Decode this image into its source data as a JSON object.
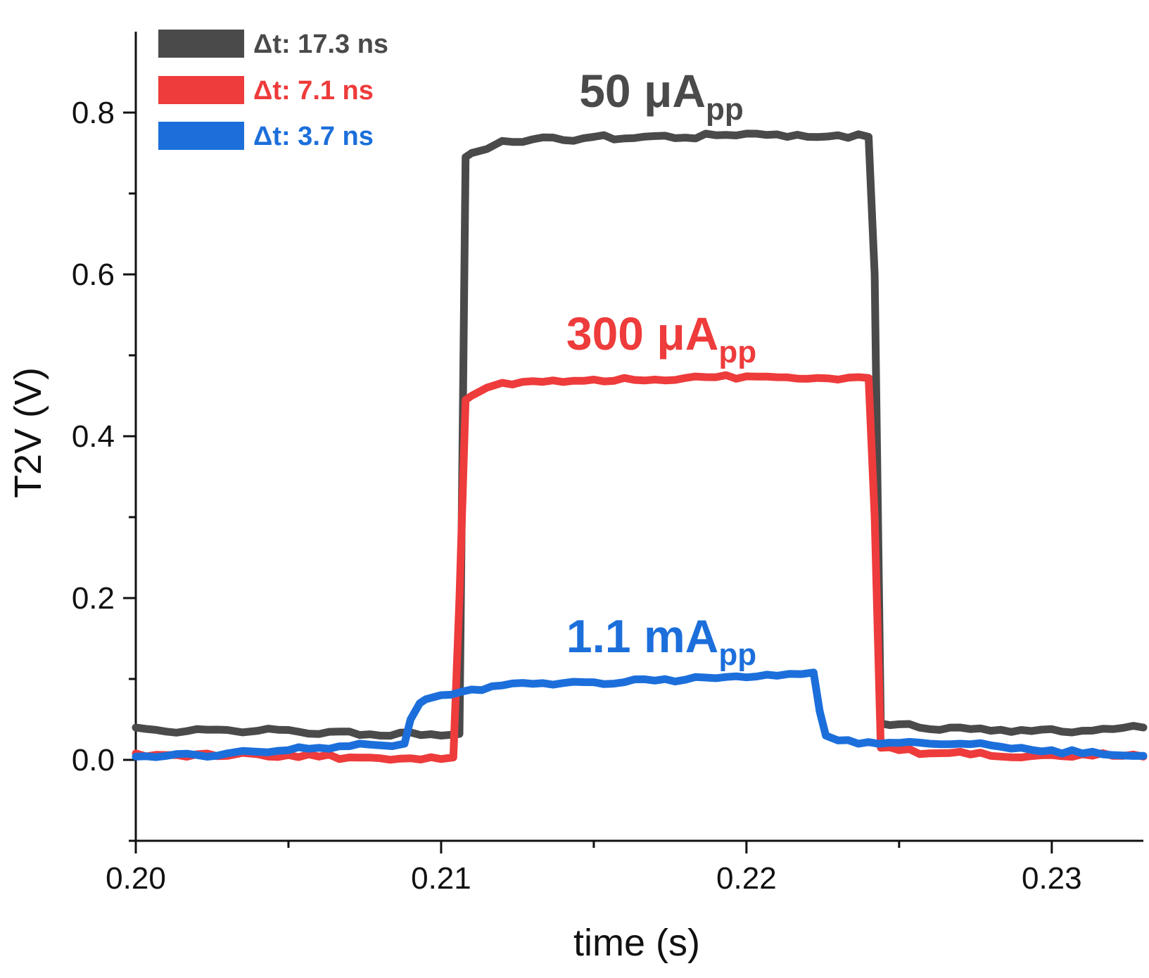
{
  "chart_data": {
    "type": "line",
    "title": "",
    "xlabel": "time (s)",
    "ylabel": "T2V (V)",
    "xlim": [
      0.2,
      0.233
    ],
    "ylim": [
      -0.1,
      0.9
    ],
    "grid": false,
    "legend_position": "top-left",
    "x_ticks": [
      "0.20",
      "0.21",
      "0.22",
      "0.23"
    ],
    "x_tick_values": [
      0.2,
      0.21,
      0.22,
      0.23
    ],
    "x_minor_ticks": [
      0.205,
      0.215,
      0.225
    ],
    "y_ticks": [
      "0.0",
      "0.2",
      "0.4",
      "0.6",
      "0.8"
    ],
    "y_tick_values": [
      0.0,
      0.2,
      0.4,
      0.6,
      0.8
    ],
    "y_minor_ticks": [
      -0.1,
      0.1,
      0.3,
      0.5,
      0.7
    ],
    "series": [
      {
        "name": "Δt: 17.3 ns",
        "color": "#4a4a4a",
        "annotation": "50 μA",
        "annotation_sub": "pp",
        "x": [
          0.2,
          0.201,
          0.202,
          0.203,
          0.204,
          0.205,
          0.206,
          0.207,
          0.208,
          0.209,
          0.21,
          0.2106,
          0.2108,
          0.211,
          0.2115,
          0.212,
          0.213,
          0.214,
          0.215,
          0.216,
          0.217,
          0.218,
          0.219,
          0.22,
          0.221,
          0.222,
          0.223,
          0.224,
          0.2242,
          0.2244,
          0.225,
          0.226,
          0.227,
          0.228,
          0.229,
          0.23,
          0.231,
          0.232,
          0.233
        ],
        "y": [
          0.04,
          0.035,
          0.038,
          0.037,
          0.036,
          0.037,
          0.032,
          0.035,
          0.03,
          0.034,
          0.03,
          0.032,
          0.745,
          0.75,
          0.755,
          0.765,
          0.767,
          0.766,
          0.77,
          0.768,
          0.771,
          0.769,
          0.772,
          0.774,
          0.773,
          0.77,
          0.772,
          0.77,
          0.6,
          0.045,
          0.044,
          0.038,
          0.04,
          0.036,
          0.037,
          0.038,
          0.036,
          0.038,
          0.04
        ]
      },
      {
        "name": "Δt: 7.1 ns",
        "color": "#ee3b3b",
        "annotation": "300 μA",
        "annotation_sub": "pp",
        "x": [
          0.2,
          0.201,
          0.202,
          0.203,
          0.204,
          0.205,
          0.206,
          0.207,
          0.208,
          0.209,
          0.21,
          0.2104,
          0.2106,
          0.2108,
          0.211,
          0.2115,
          0.212,
          0.213,
          0.214,
          0.215,
          0.216,
          0.217,
          0.218,
          0.219,
          0.22,
          0.221,
          0.222,
          0.223,
          0.224,
          0.2242,
          0.2244,
          0.225,
          0.226,
          0.227,
          0.228,
          0.229,
          0.23,
          0.231,
          0.232,
          0.233
        ],
        "y": [
          0.008,
          0.006,
          0.007,
          0.005,
          0.007,
          0.006,
          0.004,
          0.003,
          0.002,
          0.002,
          0.001,
          0.003,
          0.2,
          0.445,
          0.45,
          0.46,
          0.466,
          0.468,
          0.467,
          0.47,
          0.472,
          0.47,
          0.472,
          0.473,
          0.474,
          0.473,
          0.471,
          0.47,
          0.472,
          0.3,
          0.015,
          0.012,
          0.008,
          0.01,
          0.005,
          0.003,
          0.006,
          0.007,
          0.005,
          0.004
        ]
      },
      {
        "name": "Δt: 3.7 ns",
        "color": "#1c6fdb",
        "annotation": "1.1 mA",
        "annotation_sub": "pp",
        "x": [
          0.2,
          0.201,
          0.202,
          0.203,
          0.204,
          0.205,
          0.206,
          0.207,
          0.208,
          0.2088,
          0.209,
          0.2093,
          0.2095,
          0.21,
          0.211,
          0.212,
          0.213,
          0.214,
          0.215,
          0.216,
          0.217,
          0.218,
          0.219,
          0.22,
          0.221,
          0.2218,
          0.2222,
          0.2224,
          0.2226,
          0.223,
          0.224,
          0.225,
          0.226,
          0.227,
          0.228,
          0.229,
          0.23,
          0.231,
          0.232,
          0.233
        ],
        "y": [
          0.004,
          0.005,
          0.006,
          0.008,
          0.01,
          0.012,
          0.015,
          0.017,
          0.018,
          0.02,
          0.05,
          0.07,
          0.075,
          0.08,
          0.087,
          0.092,
          0.094,
          0.095,
          0.096,
          0.096,
          0.098,
          0.099,
          0.101,
          0.102,
          0.104,
          0.106,
          0.108,
          0.06,
          0.03,
          0.024,
          0.022,
          0.021,
          0.02,
          0.02,
          0.018,
          0.015,
          0.012,
          0.008,
          0.006,
          0.005
        ]
      }
    ]
  }
}
